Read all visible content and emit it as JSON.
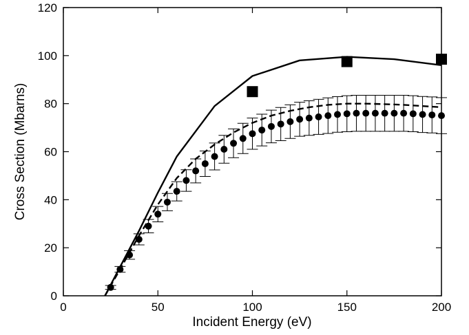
{
  "chart_data": {
    "type": "scatter",
    "title": "",
    "xlabel": "Incident Energy (eV)",
    "ylabel": "Cross Section (Mbarns)",
    "xlim": [
      0,
      200
    ],
    "ylim": [
      0,
      120
    ],
    "x_ticks": [
      0,
      50,
      100,
      150,
      200
    ],
    "y_ticks": [
      0,
      20,
      40,
      60,
      80,
      100,
      120
    ],
    "grid": false,
    "legend": "none",
    "series": [
      {
        "style": "solid-line",
        "color": "#000000",
        "x": [
          22,
          30,
          40,
          50,
          60,
          80,
          100,
          125,
          150,
          175,
          200
        ],
        "y": [
          0,
          12,
          27,
          43,
          58,
          79,
          91.5,
          98,
          99.5,
          98.5,
          96
        ]
      },
      {
        "style": "dashed-line",
        "color": "#000000",
        "x": [
          22,
          30,
          40,
          50,
          60,
          70,
          80,
          90,
          100,
          110,
          120,
          130,
          140,
          150,
          160,
          170,
          180,
          190,
          200
        ],
        "y": [
          0,
          11,
          25,
          38,
          49,
          57,
          63,
          68,
          72,
          75,
          77,
          78.5,
          79.5,
          80,
          80,
          79.8,
          79.5,
          79,
          78.5
        ]
      },
      {
        "style": "filled-squares",
        "color": "#000000",
        "x": [
          100,
          150,
          200
        ],
        "y": [
          85,
          97.5,
          98.5
        ]
      },
      {
        "style": "circles-with-error-bars",
        "color": "#000000",
        "x": [
          25,
          30,
          35,
          40,
          45,
          50,
          55,
          60,
          65,
          70,
          75,
          80,
          85,
          90,
          95,
          100,
          105,
          110,
          115,
          120,
          125,
          130,
          135,
          140,
          145,
          150,
          155,
          160,
          165,
          170,
          175,
          180,
          185,
          190,
          195,
          200
        ],
        "y": [
          3.5,
          11,
          17,
          23.5,
          29,
          34,
          39,
          43.5,
          48,
          52,
          55,
          58,
          61,
          63.5,
          65.5,
          67.5,
          69,
          70.5,
          71.5,
          72.5,
          73.5,
          74,
          74.5,
          75,
          75.5,
          75.8,
          76,
          76,
          76,
          76,
          76,
          76,
          75.8,
          75.5,
          75.3,
          75
        ],
        "err": [
          0.8,
          1.2,
          1.8,
          2.3,
          2.8,
          3.2,
          3.6,
          4.0,
          4.5,
          5.0,
          5.3,
          5.6,
          5.8,
          6.0,
          6.3,
          6.5,
          6.6,
          6.8,
          6.9,
          7.0,
          7.1,
          7.2,
          7.3,
          7.4,
          7.4,
          7.5,
          7.5,
          7.5,
          7.5,
          7.5,
          7.5,
          7.5,
          7.5,
          7.5,
          7.5,
          7.5
        ]
      }
    ]
  }
}
